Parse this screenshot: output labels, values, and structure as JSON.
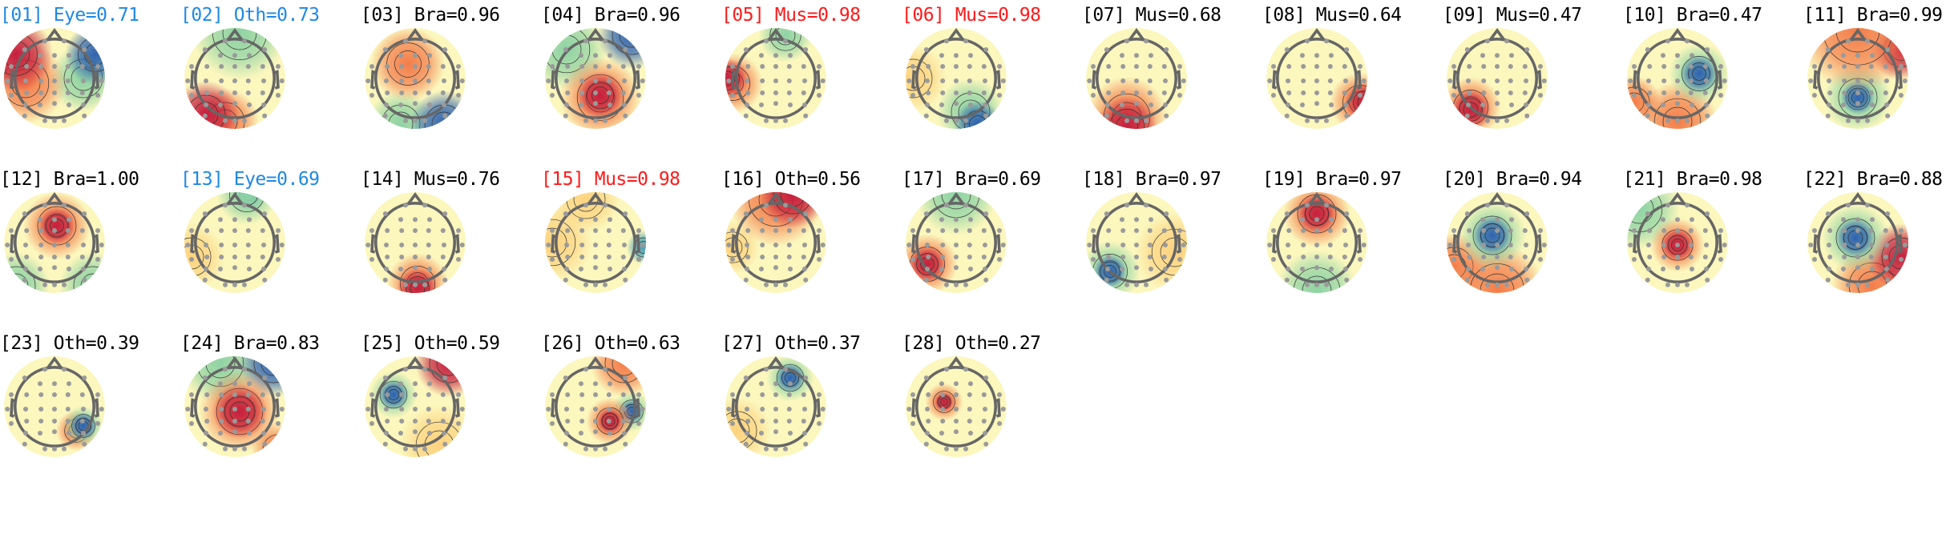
{
  "colors": {
    "eye": "#1e88e5",
    "other": "#1e88e5",
    "muscle": "#ff1a1a",
    "brain": "#000000",
    "head_outline": "#666666",
    "electrode": "#9a9a9a"
  },
  "colormap": "Spectral_r",
  "chart_data": {
    "type": "heatmap",
    "components": [
      {
        "title": "[01] Eye=0.71",
        "index": 1,
        "label": "Eye",
        "prob": 0.71,
        "color": "#1e88e5"
      },
      {
        "title": "[02] Oth=0.73",
        "index": 2,
        "label": "Oth",
        "prob": 0.73,
        "color": "#1e88e5"
      },
      {
        "title": "[03] Bra=0.96",
        "index": 3,
        "label": "Bra",
        "prob": 0.96,
        "color": "#000000"
      },
      {
        "title": "[04] Bra=0.96",
        "index": 4,
        "label": "Bra",
        "prob": 0.96,
        "color": "#000000"
      },
      {
        "title": "[05] Mus=0.98",
        "index": 5,
        "label": "Mus",
        "prob": 0.98,
        "color": "#ff1a1a"
      },
      {
        "title": "[06] Mus=0.98",
        "index": 6,
        "label": "Mus",
        "prob": 0.98,
        "color": "#ff1a1a"
      },
      {
        "title": "[07] Mus=0.68",
        "index": 7,
        "label": "Mus",
        "prob": 0.68,
        "color": "#000000"
      },
      {
        "title": "[08] Mus=0.64",
        "index": 8,
        "label": "Mus",
        "prob": 0.64,
        "color": "#000000"
      },
      {
        "title": "[09] Mus=0.47",
        "index": 9,
        "label": "Mus",
        "prob": 0.47,
        "color": "#000000"
      },
      {
        "title": "[10] Bra=0.47",
        "index": 10,
        "label": "Bra",
        "prob": 0.47,
        "color": "#000000"
      },
      {
        "title": "[11] Bra=0.99",
        "index": 11,
        "label": "Bra",
        "prob": 0.99,
        "color": "#000000"
      },
      {
        "title": "[12] Bra=1.00",
        "index": 12,
        "label": "Bra",
        "prob": 1.0,
        "color": "#000000"
      },
      {
        "title": "[13] Eye=0.69",
        "index": 13,
        "label": "Eye",
        "prob": 0.69,
        "color": "#1e88e5"
      },
      {
        "title": "[14] Mus=0.76",
        "index": 14,
        "label": "Mus",
        "prob": 0.76,
        "color": "#000000"
      },
      {
        "title": "[15] Mus=0.98",
        "index": 15,
        "label": "Mus",
        "prob": 0.98,
        "color": "#ff1a1a"
      },
      {
        "title": "[16] Oth=0.56",
        "index": 16,
        "label": "Oth",
        "prob": 0.56,
        "color": "#000000"
      },
      {
        "title": "[17] Bra=0.69",
        "index": 17,
        "label": "Bra",
        "prob": 0.69,
        "color": "#000000"
      },
      {
        "title": "[18] Bra=0.97",
        "index": 18,
        "label": "Bra",
        "prob": 0.97,
        "color": "#000000"
      },
      {
        "title": "[19] Bra=0.97",
        "index": 19,
        "label": "Bra",
        "prob": 0.97,
        "color": "#000000"
      },
      {
        "title": "[20] Bra=0.94",
        "index": 20,
        "label": "Bra",
        "prob": 0.94,
        "color": "#000000"
      },
      {
        "title": "[21] Bra=0.98",
        "index": 21,
        "label": "Bra",
        "prob": 0.98,
        "color": "#000000"
      },
      {
        "title": "[22] Bra=0.88",
        "index": 22,
        "label": "Bra",
        "prob": 0.88,
        "color": "#000000"
      },
      {
        "title": "[23] Oth=0.39",
        "index": 23,
        "label": "Oth",
        "prob": 0.39,
        "color": "#000000"
      },
      {
        "title": "[24] Bra=0.83",
        "index": 24,
        "label": "Bra",
        "prob": 0.83,
        "color": "#000000"
      },
      {
        "title": "[25] Oth=0.59",
        "index": 25,
        "label": "Oth",
        "prob": 0.59,
        "color": "#000000"
      },
      {
        "title": "[26] Oth=0.63",
        "index": 26,
        "label": "Oth",
        "prob": 0.63,
        "color": "#000000"
      },
      {
        "title": "[27] Oth=0.37",
        "index": 27,
        "label": "Oth",
        "prob": 0.37,
        "color": "#000000"
      },
      {
        "title": "[28] Oth=0.27",
        "index": 28,
        "label": "Oth",
        "prob": 0.27,
        "color": "#000000"
      }
    ]
  }
}
